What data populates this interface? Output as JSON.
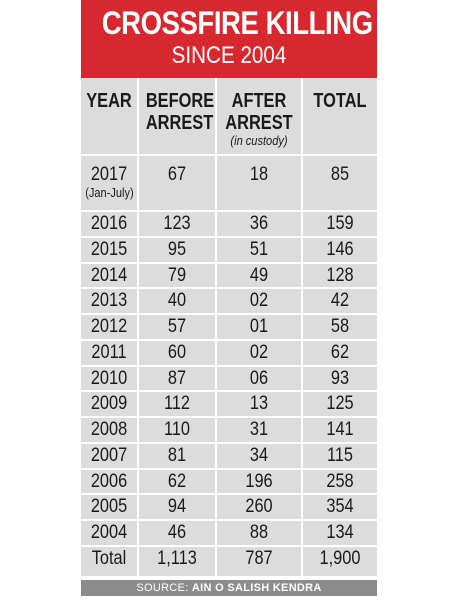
{
  "header": {
    "title": "CROSSFIRE KILLING",
    "subtitle": "SINCE 2004"
  },
  "columns": {
    "year": "YEAR",
    "before_line1": "BEFORE",
    "before_line2": "ARREST",
    "after_line1": "AFTER",
    "after_line2": "ARREST",
    "after_note": "(in custody)",
    "total": "TOTAL"
  },
  "source": {
    "prefix": "SOURCE: ",
    "name": "AIN O SALISH KENDRA"
  },
  "colors": {
    "banner": "#d7282f",
    "table_bg": "#dcdcdc",
    "source_bg": "#8c8c8c"
  },
  "chart_data": {
    "type": "table",
    "title": "CROSSFIRE KILLING",
    "subtitle": "SINCE 2004",
    "columns": [
      "YEAR",
      "BEFORE ARREST",
      "AFTER ARREST (in custody)",
      "TOTAL"
    ],
    "rows": [
      {
        "year": "2017",
        "year_note": "(Jan-July)",
        "before": "67",
        "after": "18",
        "total": "85"
      },
      {
        "year": "2016",
        "before": "123",
        "after": "36",
        "total": "159"
      },
      {
        "year": "2015",
        "before": "95",
        "after": "51",
        "total": "146"
      },
      {
        "year": "2014",
        "before": "79",
        "after": "49",
        "total": "128"
      },
      {
        "year": "2013",
        "before": "40",
        "after": "02",
        "total": "42"
      },
      {
        "year": "2012",
        "before": "57",
        "after": "01",
        "total": "58"
      },
      {
        "year": "2011",
        "before": "60",
        "after": "02",
        "total": "62"
      },
      {
        "year": "2010",
        "before": "87",
        "after": "06",
        "total": "93"
      },
      {
        "year": "2009",
        "before": "112",
        "after": "13",
        "total": "125"
      },
      {
        "year": "2008",
        "before": "110",
        "after": "31",
        "total": "141"
      },
      {
        "year": "2007",
        "before": "81",
        "after": "34",
        "total": "115"
      },
      {
        "year": "2006",
        "before": "62",
        "after": "196",
        "total": "258"
      },
      {
        "year": "2005",
        "before": "94",
        "after": "260",
        "total": "354"
      },
      {
        "year": "2004",
        "before": "46",
        "after": "88",
        "total": "134"
      }
    ],
    "totals": {
      "label": "Total",
      "before": "1,113",
      "after": "787",
      "total": "1,900"
    }
  }
}
